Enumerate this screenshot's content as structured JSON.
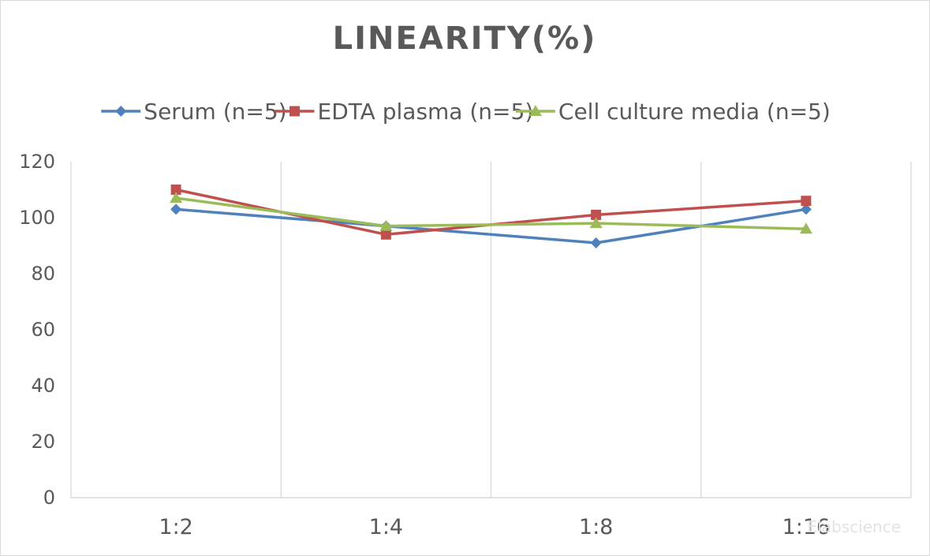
{
  "chart_data": {
    "type": "line",
    "title": "LINEARITY(%)",
    "categories": [
      "1:2",
      "1:4",
      "1:8",
      "1:16"
    ],
    "series": [
      {
        "name": "Serum (n=5)",
        "values": [
          103,
          97,
          91,
          103
        ],
        "color": "#4F81BD",
        "marker": "diamond"
      },
      {
        "name": "EDTA plasma (n=5)",
        "values": [
          110,
          94,
          101,
          106
        ],
        "color": "#C0504D",
        "marker": "square"
      },
      {
        "name": "Cell culture media (n=5)",
        "values": [
          107,
          97,
          98,
          96
        ],
        "color": "#9BBB59",
        "marker": "triangle"
      }
    ],
    "ylim": [
      0,
      120
    ],
    "yticks": [
      0,
      20,
      40,
      60,
      80,
      100,
      120
    ],
    "grid": "vertical",
    "legend_position": "top",
    "watermark": "Elabscience"
  }
}
